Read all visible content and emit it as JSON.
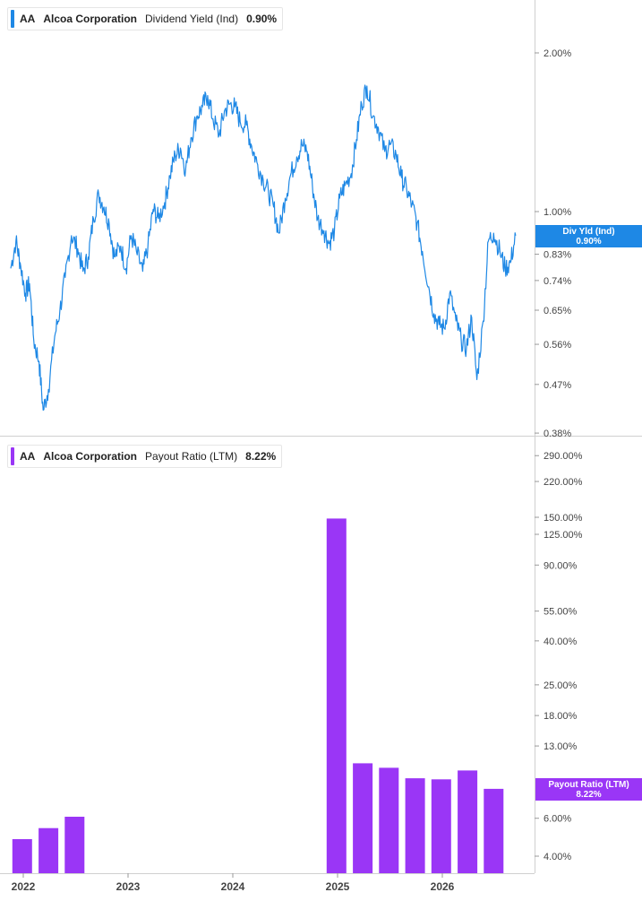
{
  "legend_top": {
    "symbol": "AA",
    "company": "Alcoa Corporation",
    "metric": "Dividend Yield (Ind)",
    "value": "0.90%",
    "color": "#1e88e5"
  },
  "legend_bottom": {
    "symbol": "AA",
    "company": "Alcoa Corporation",
    "metric": "Payout Ratio (LTM)",
    "value": "8.22%",
    "color": "#9a36f6"
  },
  "tag_top": {
    "label": "Div Yld (Ind)",
    "value": "0.90%"
  },
  "tag_bottom": {
    "label": "Payout Ratio (LTM)",
    "value": "8.22%"
  },
  "chart_data": [
    {
      "type": "line",
      "scale": "log",
      "color": "#1e88e5",
      "ylim": [
        0.38,
        2.6
      ],
      "xlim": [
        2021.88,
        2026.73
      ],
      "y_ticks": [
        "2.00%",
        "1.00%",
        "0.83%",
        "0.74%",
        "0.65%",
        "0.56%",
        "0.47%",
        "0.38%"
      ],
      "y_tick_values": [
        2.0,
        1.0,
        0.83,
        0.74,
        0.65,
        0.56,
        0.47,
        0.38
      ],
      "series": [
        {
          "x": [
            2021.88,
            2021.93,
            2021.97,
            2022.02,
            2022.06,
            2022.1,
            2022.15,
            2022.19,
            2022.24,
            2022.3,
            2022.35,
            2022.4,
            2022.46,
            2022.52,
            2022.57,
            2022.62,
            2022.67,
            2022.72,
            2022.77,
            2022.82,
            2022.87,
            2022.93,
            2022.98,
            2023.03,
            2023.08,
            2023.14,
            2023.19,
            2023.24,
            2023.29,
            2023.35,
            2023.4,
            2023.45,
            2023.5,
            2023.55,
            2023.6,
            2023.66,
            2023.71,
            2023.76,
            2023.81,
            2023.87,
            2023.92,
            2023.97,
            2024.02,
            2024.07,
            2024.13,
            2024.18,
            2024.23,
            2024.29,
            2024.34,
            2024.39,
            2024.44,
            2024.5,
            2024.55,
            2024.61,
            2024.66,
            2024.71,
            2024.76,
            2024.81,
            2024.87,
            2024.92,
            2024.97,
            2025.02,
            2025.07,
            2025.13,
            2025.18,
            2025.23,
            2025.28,
            2025.34,
            2025.39,
            2025.45,
            2025.5,
            2025.56,
            2025.61,
            2025.66,
            2025.71,
            2025.76,
            2025.81,
            2025.87,
            2025.92,
            2025.97,
            2026.02,
            2026.07,
            2026.13,
            2026.18,
            2026.23,
            2026.28,
            2026.33,
            2026.39,
            2026.44,
            2026.49,
            2026.55,
            2026.6,
            2026.65,
            2026.7
          ],
          "values": [
            0.78,
            0.88,
            0.8,
            0.7,
            0.73,
            0.57,
            0.52,
            0.42,
            0.46,
            0.58,
            0.65,
            0.75,
            0.9,
            0.85,
            0.77,
            0.82,
            0.97,
            1.08,
            1.02,
            0.95,
            0.82,
            0.86,
            0.78,
            0.9,
            0.84,
            0.77,
            0.86,
            1.01,
            0.97,
            1.04,
            1.17,
            1.28,
            1.32,
            1.2,
            1.38,
            1.52,
            1.58,
            1.66,
            1.5,
            1.4,
            1.55,
            1.6,
            1.58,
            1.48,
            1.46,
            1.33,
            1.24,
            1.15,
            1.09,
            1.02,
            0.91,
            1.06,
            1.17,
            1.27,
            1.34,
            1.3,
            1.12,
            0.97,
            0.92,
            0.87,
            0.92,
            1.06,
            1.12,
            1.18,
            1.37,
            1.6,
            1.73,
            1.52,
            1.44,
            1.3,
            1.34,
            1.28,
            1.16,
            1.1,
            1.03,
            0.95,
            0.84,
            0.72,
            0.64,
            0.61,
            0.6,
            0.7,
            0.62,
            0.57,
            0.55,
            0.63,
            0.48,
            0.62,
            0.88,
            0.91,
            0.84,
            0.78,
            0.8,
            0.9
          ]
        }
      ]
    },
    {
      "type": "bar",
      "scale": "log",
      "color": "#9a36f6",
      "ylim": [
        3.5,
        300
      ],
      "xlim": [
        2021.88,
        2026.73
      ],
      "y_ticks": [
        "290.00%",
        "220.00%",
        "150.00%",
        "125.00%",
        "90.00%",
        "55.00%",
        "40.00%",
        "25.00%",
        "18.00%",
        "13.00%",
        "6.00%",
        "4.00%"
      ],
      "y_tick_values": [
        290,
        220,
        150,
        125,
        90,
        55,
        40,
        25,
        18,
        13,
        6,
        4
      ],
      "x": [
        2021.99,
        2022.24,
        2022.49,
        2024.99,
        2025.24,
        2025.49,
        2025.74,
        2025.99,
        2026.24,
        2026.49
      ],
      "values": [
        4.8,
        5.4,
        6.1,
        148,
        10.8,
        10.3,
        9.2,
        9.1,
        10.0,
        8.22
      ]
    }
  ],
  "x_axis": {
    "labels": [
      "2022",
      "2023",
      "2024",
      "2025",
      "2026"
    ],
    "values": [
      2022,
      2023,
      2024,
      2025,
      2026
    ]
  }
}
